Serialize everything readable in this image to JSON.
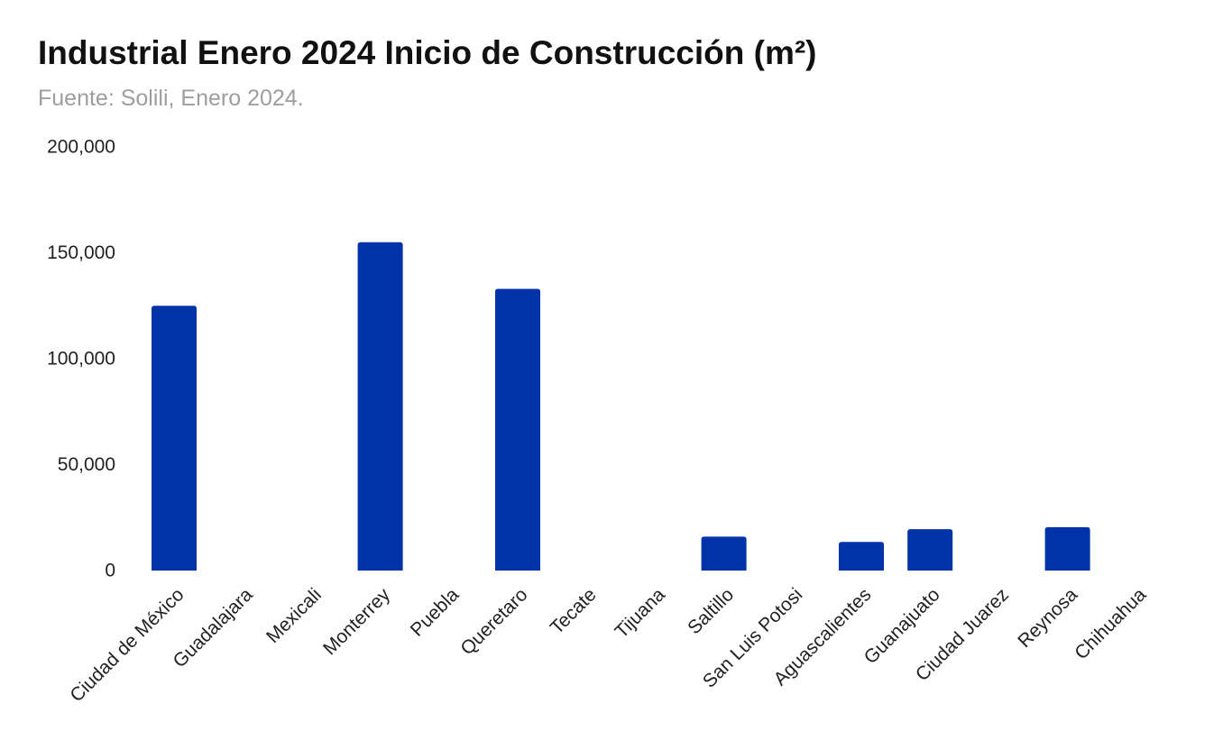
{
  "chart_data": {
    "type": "bar",
    "title": "Industrial Enero 2024 Inicio de Construcción (m²)",
    "subtitle": "Fuente: Solili, Enero 2024.",
    "categories": [
      "Ciudad de México",
      "Guadalajara",
      "Mexicali",
      "Monterrey",
      "Puebla",
      "Queretaro",
      "Tecate",
      "Tijuana",
      "Saltillo",
      "San Luis Potosi",
      "Aguascalientes",
      "Guanajuato",
      "Ciudad Juarez",
      "Reynosa",
      "Chihuahua"
    ],
    "series": [
      {
        "values": [
          125000,
          0,
          0,
          155000,
          0,
          133000,
          0,
          0,
          16000,
          0,
          13500,
          19500,
          0,
          20500,
          0
        ]
      }
    ],
    "ylim": [
      0,
      200000
    ],
    "yticks": [
      0,
      50000,
      100000,
      150000,
      200000
    ],
    "ytick_labels": [
      "0",
      "50,000",
      "100,000",
      "150,000",
      "200,000"
    ],
    "xlabel": "",
    "ylabel": "",
    "grid": false,
    "legend": "none",
    "bar_color": "#0033a8"
  }
}
